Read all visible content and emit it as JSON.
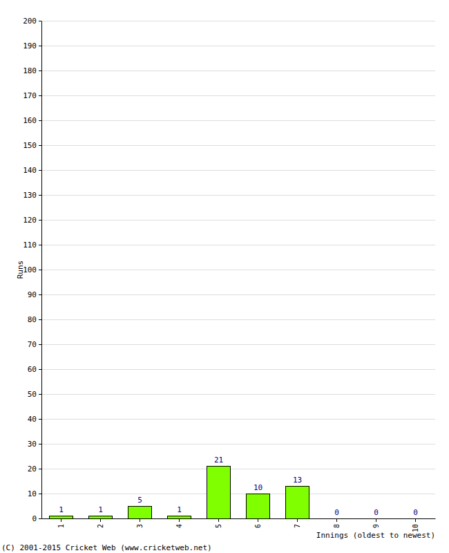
{
  "chart_data": {
    "type": "bar",
    "x_label": "Innings (oldest to newest)",
    "y_label": "Runs",
    "annotations": [
      "(C) 2001-2015 Cricket Web (www.cricketweb.net)"
    ],
    "categories": [
      "1",
      "2",
      "3",
      "4",
      "5",
      "6",
      "7",
      "8",
      "9",
      "10"
    ],
    "values": [
      1,
      1,
      5,
      1,
      21,
      10,
      13,
      0,
      0,
      0
    ],
    "color": "#80ff00",
    "ylim": [
      0,
      200
    ],
    "yticks": [
      0,
      10,
      20,
      30,
      40,
      50,
      60,
      70,
      80,
      90,
      100,
      110,
      120,
      130,
      140,
      150,
      160,
      170,
      180,
      190,
      200
    ],
    "grid": true,
    "data_labels": true
  }
}
